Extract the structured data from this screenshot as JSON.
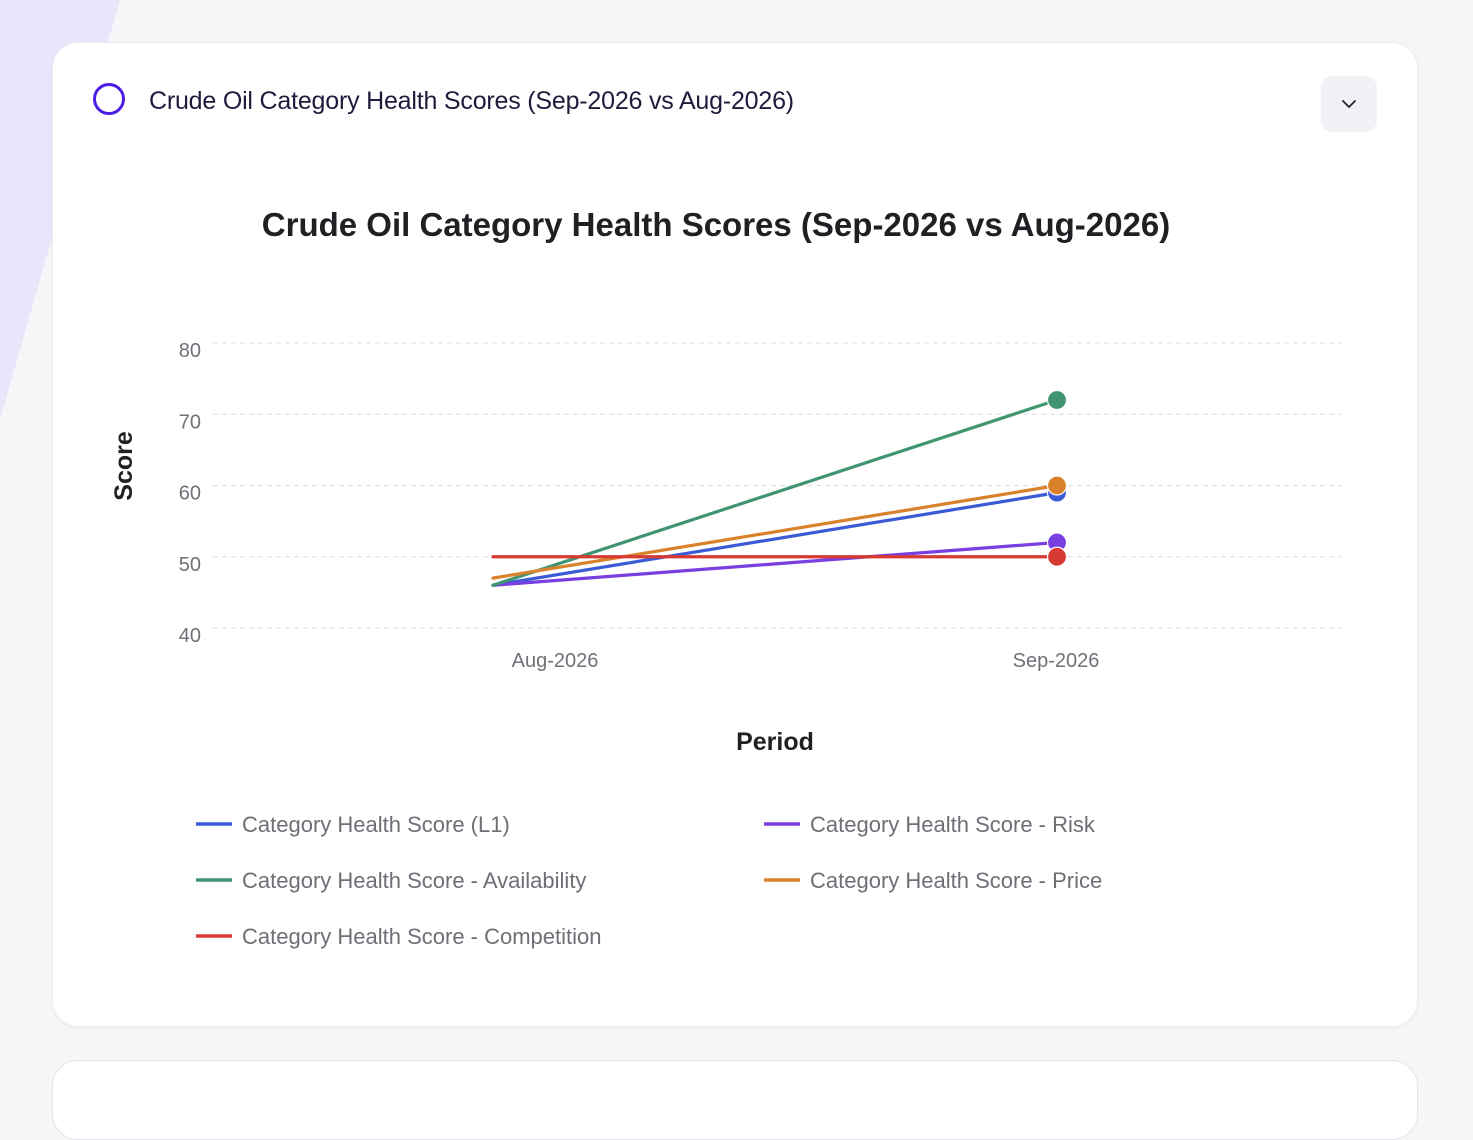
{
  "header": {
    "title": "Crude Oil Category Health Scores (Sep-2026 vs Aug-2026)",
    "icon": "ring-logo-icon",
    "collapse_icon": "chevron-down-icon"
  },
  "chart_data": {
    "type": "line",
    "title": "Crude Oil Category Health Scores (Sep-2026 vs Aug-2026)",
    "xlabel": "Period",
    "ylabel": "Score",
    "categories": [
      "Aug-2026",
      "Sep-2026"
    ],
    "ylim": [
      40,
      80
    ],
    "yticks": [
      40,
      50,
      60,
      70,
      80
    ],
    "grid": true,
    "legend_position": "bottom",
    "series": [
      {
        "name": "Category Health Score (L1)",
        "color": "#3b5bd6",
        "values": [
          46,
          59
        ]
      },
      {
        "name": "Category Health Score - Risk",
        "color": "#7a3fe0",
        "values": [
          46,
          52
        ]
      },
      {
        "name": "Category Health Score - Availability",
        "color": "#3f9570",
        "values": [
          46,
          72
        ]
      },
      {
        "name": "Category Health Score - Price",
        "color": "#d9822b",
        "values": [
          47,
          60
        ]
      },
      {
        "name": "Category Health Score - Competition",
        "color": "#d63a33",
        "values": [
          50,
          50
        ]
      }
    ]
  }
}
